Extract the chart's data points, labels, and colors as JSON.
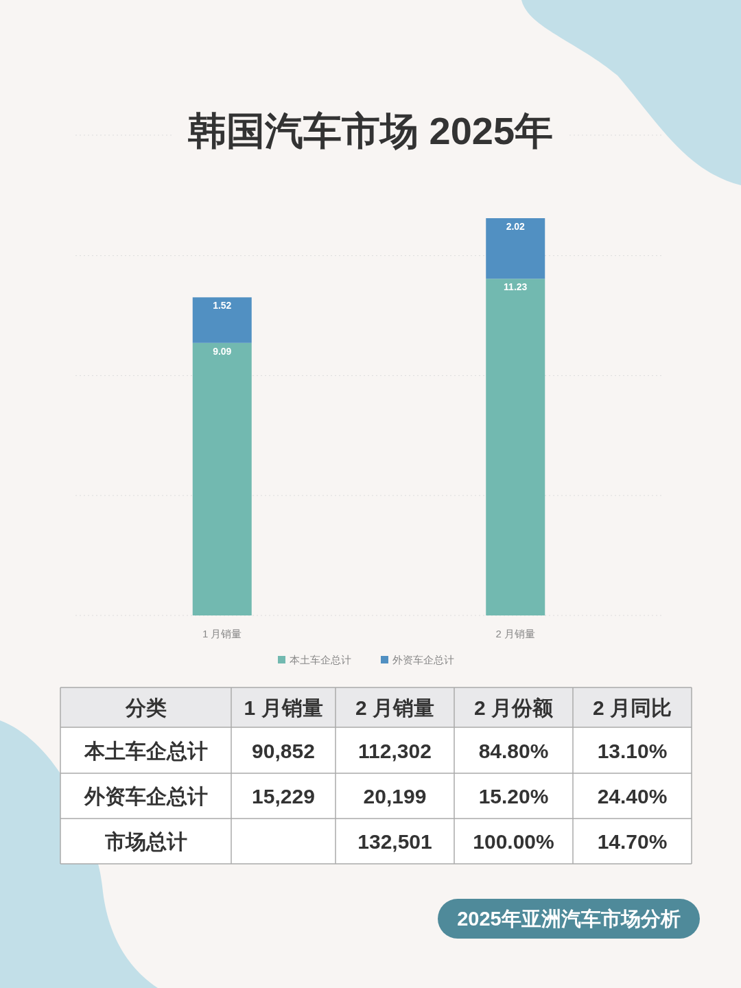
{
  "chart_data": [
    {
      "type": "bar",
      "title": "韩国汽车市场 2025年",
      "stacked": true,
      "categories": [
        "1 月销量",
        "2 月销量"
      ],
      "series": [
        {
          "name": "本土车企总计",
          "color": "#72b9b0",
          "values": [
            9.09,
            11.23
          ]
        },
        {
          "name": "外资车企总计",
          "color": "#5190c2",
          "values": [
            1.52,
            2.02
          ]
        }
      ],
      "yticks": [
        {
          "value": 0,
          "label": null
        },
        {
          "value": 4,
          "label": null
        },
        {
          "value": 8,
          "label": null
        },
        {
          "value": 12,
          "label": null
        }
      ],
      "grid": "y",
      "legend": "bottom",
      "data_labels": true,
      "tick_labels": "x"
    },
    {
      "type": "other",
      "categories": [
        "分类",
        "1 月销量",
        "2 月销量",
        "2 月份额",
        "2 月同比"
      ],
      "y_categories": [
        "本土车企总计",
        "外资车企总计",
        "市场总计"
      ],
      "cell_labels": [
        [
          "90,852",
          "112,302",
          "84.80%",
          "13.10%"
        ],
        [
          "15,229",
          "20,199",
          "15.20%",
          "24.40%"
        ],
        [
          null,
          "132,501",
          "100.00%",
          "14.70%"
        ]
      ],
      "annotations": [
        "2025年亚洲汽车市场分析"
      ]
    }
  ]
}
